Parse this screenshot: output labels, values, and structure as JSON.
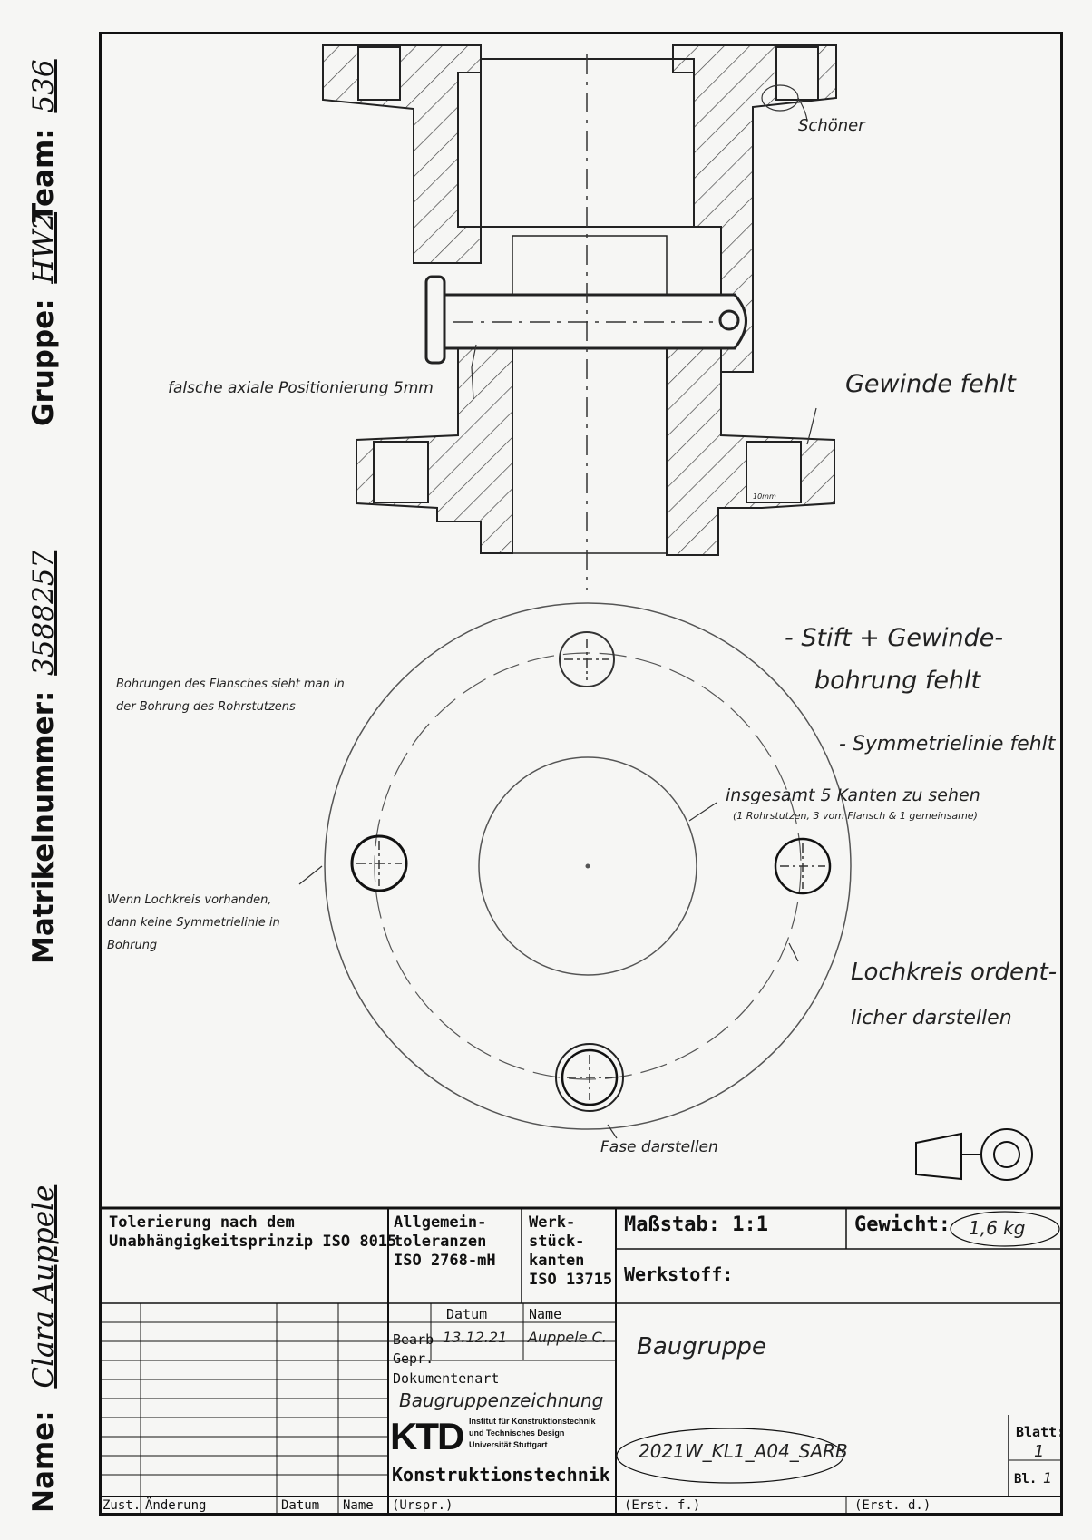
{
  "side_labels": {
    "name_label": "Name:",
    "name_value": "Clara Auppele",
    "matrikel_label": "Matrikelnummer:",
    "matrikel_value": "3588257",
    "gruppe_label": "Gruppe:",
    "gruppe_value": "HW2",
    "team_label": "Team:",
    "team_value": "536"
  },
  "annotations": {
    "schoner": "Schöner",
    "axial": "falsche axiale Positionierung 5mm",
    "gewinde": "Gewinde fehlt",
    "ten_mm": "10mm",
    "stift_1": "- Stift + Gewinde-",
    "stift_2": "bohrung fehlt",
    "symm": "- Symmetrielinie fehlt",
    "bohrungen_1": "Bohrungen des Flansches sieht man in",
    "bohrungen_2": "der Bohrung des Rohrstutzens",
    "kanten_1": "insgesamt 5 Kanten zu sehen",
    "kanten_2": "(1 Rohrstutzen, 3 vom Flansch & 1 gemeinsame)",
    "wenn_1": "Wenn Lochkreis vorhanden,",
    "wenn_2": "dann keine Symmetrielinie in",
    "wenn_3": "Bohrung",
    "lochkreis_1": "Lochkreis ordent-",
    "lochkreis_2": "licher darstellen",
    "fase": "Fase darstellen"
  },
  "title_block": {
    "tolerierung_1": "Tolerierung nach dem",
    "tolerierung_2": "Unabhängigkeitsprinzip ISO 8015",
    "allgemein_1": "Allgemein-",
    "allgemein_2": "toleranzen",
    "allgemein_3": "ISO 2768-mH",
    "werk_1": "Werk-",
    "werk_2": "stück-",
    "werk_3": "kanten",
    "werk_4": "ISO 13715",
    "massstab": "Maßstab: 1:1",
    "gewicht_label": "Gewicht:",
    "gewicht_value": "1,6 kg",
    "werkstoff": "Werkstoff:",
    "datum": "Datum",
    "name": "Name",
    "bearb": "Bearb",
    "bearb_datum": "13.12.21",
    "bearb_name": "Auppele C.",
    "gepr": "Gepr.",
    "dokumentenart": "Dokumentenart",
    "dokumentenart_value": "Baugruppenzeichnung",
    "benennung": "Baugruppe",
    "logo_text": "KTD",
    "inst_1": "Institut für Konstruktionstechnik",
    "inst_2": "und Technisches Design",
    "inst_3": "Universität Stuttgart",
    "konstruktion": "Konstruktionstechnik",
    "zeichnungsnr": "2021W_KL1_A04_SARB",
    "blatt_label": "Blatt:",
    "blatt_value": "1",
    "bl_label": "Bl.",
    "bl_value": "1",
    "zust": "Zust.",
    "aenderung": "Änderung",
    "datum2": "Datum",
    "name2": "Name",
    "urspr": "(Urspr.)",
    "erst_f": "(Erst. f.)",
    "erst_d": "(Erst. d.)"
  }
}
